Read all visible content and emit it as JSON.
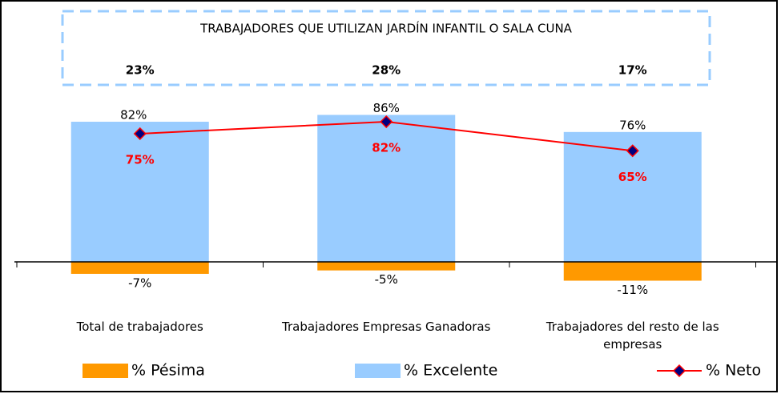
{
  "chart_data": {
    "type": "bar",
    "annotation": {
      "text": "TRABAJADORES QUE UTILIZAN JARDÍN INFANTIL O SALA CUNA",
      "labels": [
        "23%",
        "28%",
        "17%"
      ]
    },
    "categories": [
      "Total de trabajadores",
      "Trabajadores Empresas Ganadoras",
      "Trabajadores del resto de las empresas"
    ],
    "series": [
      {
        "name": "% Pésima",
        "type": "bar",
        "color": "#ff9900",
        "values": [
          -7,
          -5,
          -11
        ],
        "value_labels": [
          "-7%",
          "-5%",
          "-11%"
        ]
      },
      {
        "name": "% Excelente",
        "type": "bar",
        "color": "#99ccff",
        "values": [
          82,
          86,
          76
        ],
        "value_labels": [
          "82%",
          "86%",
          "76%"
        ]
      },
      {
        "name": "% Neto",
        "type": "line",
        "color": "#ff0000",
        "marker_color": "#000080",
        "values": [
          75,
          82,
          65
        ],
        "value_labels": [
          "75%",
          "82%",
          "65%"
        ]
      }
    ],
    "ylim": [
      -20,
      100
    ],
    "grid": false,
    "legend": "bottom"
  }
}
